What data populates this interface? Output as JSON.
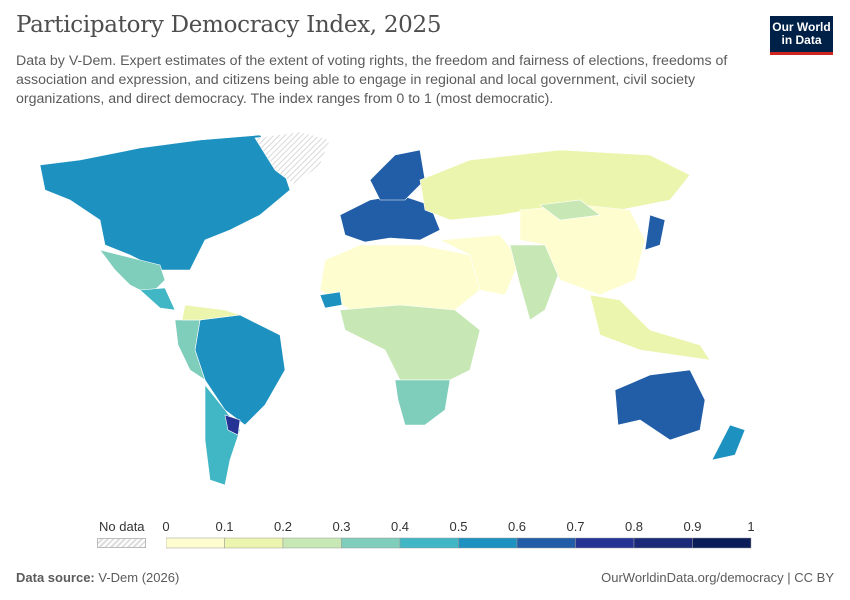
{
  "title": "Participatory Democracy Index, 2025",
  "subtitle": "Data by V-Dem. Expert estimates of the extent of voting rights, the freedom and fairness of elections, freedoms of association and expression, and citizens being able to engage in regional and local government, civil society organizations, and direct democracy. The index ranges from 0 to 1 (most democratic).",
  "logo": {
    "line1": "Our World",
    "line2": "in Data"
  },
  "legend": {
    "no_data_label": "No data",
    "ticks": [
      "0",
      "0.1",
      "0.2",
      "0.3",
      "0.4",
      "0.5",
      "0.6",
      "0.7",
      "0.8",
      "0.9",
      "1"
    ],
    "colors": [
      "#fdfdcf",
      "#ecf5ae",
      "#c7e8b4",
      "#7fcdbb",
      "#41b6c4",
      "#1d91c0",
      "#225ea8",
      "#253494",
      "#1a2a78",
      "#0b1d58"
    ]
  },
  "chart_data": {
    "type": "choropleth",
    "title": "Participatory Democracy Index, 2025",
    "range": [
      0,
      1
    ],
    "region_values": [
      0.55,
      null,
      0.35,
      0.45,
      0.55,
      0.45,
      0.35,
      0.15,
      0.75,
      0.6,
      0.65,
      0.15,
      0.05,
      0.2,
      0.35,
      0.05,
      0.25,
      0.05,
      0.25,
      0.15,
      0.6,
      0.65,
      0.5,
      0.5
    ]
  },
  "footer": {
    "source_label": "Data source:",
    "source": "V-Dem (2026)",
    "url": "OurWorldinData.org/democracy | CC BY"
  }
}
